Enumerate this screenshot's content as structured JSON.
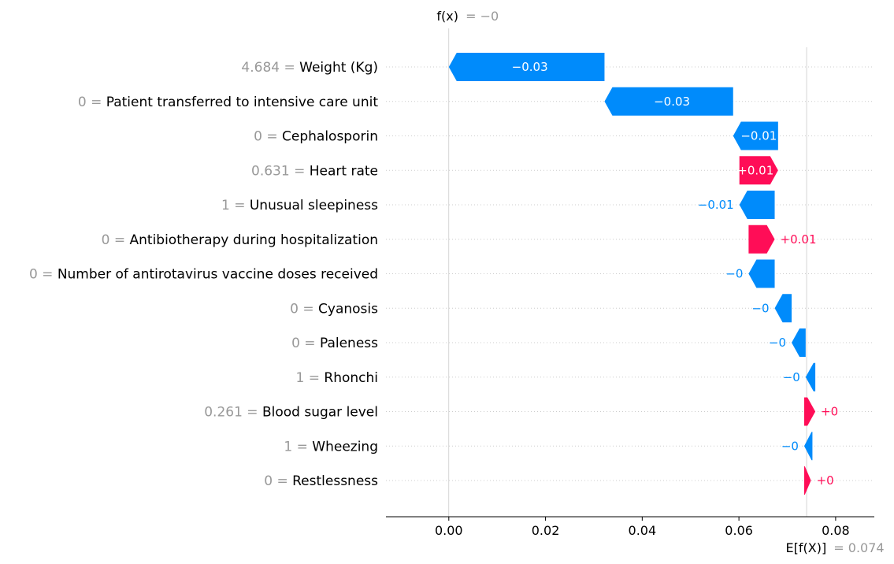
{
  "chart_data": {
    "type": "waterfall",
    "fx": {
      "label": "f(x)",
      "value_text": "= −0",
      "value": 0.0
    },
    "base": {
      "label": "E[f(X)]",
      "value_text": "= 0.074",
      "value": 0.074
    },
    "xlim": [
      -0.013,
      0.088
    ],
    "xticks": [
      {
        "value": 0.0,
        "label": "0.00"
      },
      {
        "value": 0.02,
        "label": "0.02"
      },
      {
        "value": 0.04,
        "label": "0.04"
      },
      {
        "value": 0.06,
        "label": "0.06"
      },
      {
        "value": 0.08,
        "label": "0.08"
      }
    ],
    "features": [
      {
        "value": "4.684 =",
        "name": "Weight (Kg)",
        "start": 0.0,
        "end": 0.0322,
        "label": "−0.03"
      },
      {
        "value": "0 =",
        "name": "Patient transferred to intensive care unit",
        "start": 0.0322,
        "end": 0.0588,
        "label": "−0.03"
      },
      {
        "value": "0 =",
        "name": "Cephalosporin",
        "start": 0.0588,
        "end": 0.0681,
        "label": "−0.01"
      },
      {
        "value": "0.631 =",
        "name": "Heart rate",
        "start": 0.0601,
        "end": 0.0681,
        "label": "+0.01"
      },
      {
        "value": "1 =",
        "name": "Unusual sleepiness",
        "start": 0.0601,
        "end": 0.0674,
        "label": "−0.01"
      },
      {
        "value": "0 =",
        "name": "Antibiotherapy during hospitalization",
        "start": 0.062,
        "end": 0.0674,
        "label": "+0.01"
      },
      {
        "value": "0 =",
        "name": "Number of antirotavirus vaccine doses received",
        "start": 0.062,
        "end": 0.0674,
        "label": "−0"
      },
      {
        "value": "0 =",
        "name": "Cyanosis",
        "start": 0.0674,
        "end": 0.0709,
        "label": "−0"
      },
      {
        "value": "0 =",
        "name": "Paleness",
        "start": 0.0709,
        "end": 0.0738,
        "label": "−0"
      },
      {
        "value": "1 =",
        "name": "Rhonchi",
        "start": 0.0738,
        "end": 0.0758,
        "label": "−0"
      },
      {
        "value": "0.261 =",
        "name": "Blood sugar level",
        "start": 0.0735,
        "end": 0.0758,
        "label": "+0"
      },
      {
        "value": "1 =",
        "name": "Wheezing",
        "start": 0.0735,
        "end": 0.0752,
        "label": "−0"
      },
      {
        "value": "0 =",
        "name": "Restlessness",
        "start": 0.0735,
        "end": 0.0749,
        "label": "+0"
      }
    ],
    "colors": {
      "positive": "#ff0d57",
      "negative": "#008bfb",
      "muted": "#999999",
      "grid": "#cccccc"
    }
  }
}
